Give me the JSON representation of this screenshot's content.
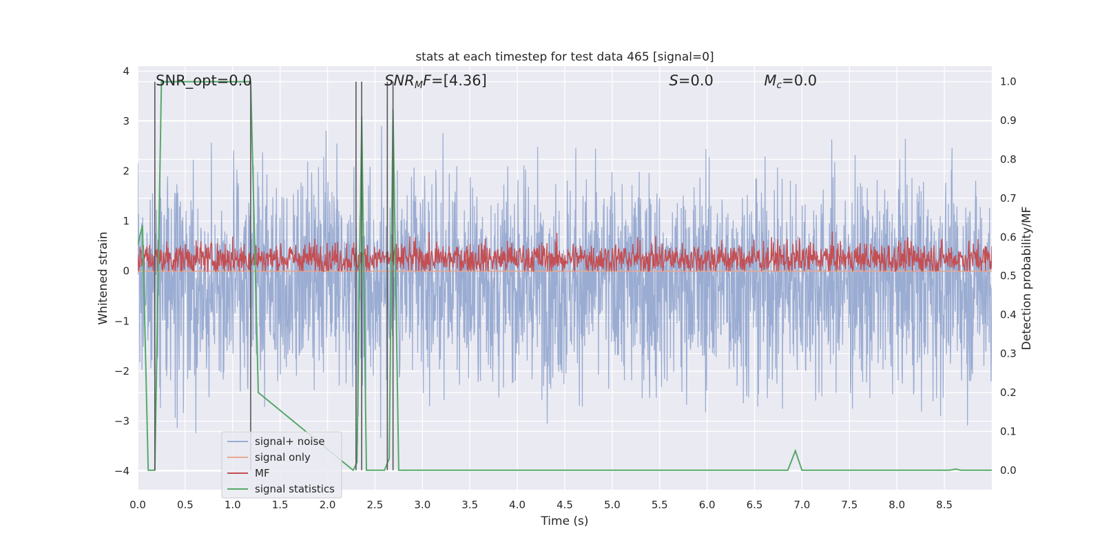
{
  "chart_data": {
    "type": "line",
    "title": "stats at each timestep for test data 465 [signal=0]",
    "xlabel": "Time (s)",
    "ylabel": "Whitened strain",
    "y2label": "Detection probability/MF",
    "xlim": [
      0.0,
      9.0
    ],
    "ylim": [
      -4.37,
      4.1
    ],
    "y2lim": [
      -0.05,
      1.04
    ],
    "xticks": [
      "0.0",
      "0.5",
      "1.0",
      "1.5",
      "2.0",
      "2.5",
      "3.0",
      "3.5",
      "4.0",
      "4.5",
      "5.0",
      "5.5",
      "6.0",
      "6.5",
      "7.0",
      "7.5",
      "8.0",
      "8.5"
    ],
    "xtick_values": [
      0.0,
      0.5,
      1.0,
      1.5,
      2.0,
      2.5,
      3.0,
      3.5,
      4.0,
      4.5,
      5.0,
      5.5,
      6.0,
      6.5,
      7.0,
      7.5,
      8.0,
      8.5
    ],
    "yticks": [
      "4",
      "3",
      "2",
      "1",
      "0",
      "−1",
      "−2",
      "−3",
      "−4"
    ],
    "ytick_values": [
      4,
      3,
      2,
      1,
      0,
      -1,
      -2,
      -3,
      -4
    ],
    "y2ticks": [
      "1.0",
      "0.9",
      "0.8",
      "0.7",
      "0.6",
      "0.5",
      "0.4",
      "0.3",
      "0.2",
      "0.1",
      "0.0"
    ],
    "y2tick_values": [
      1.0,
      0.9,
      0.8,
      0.7,
      0.6,
      0.5,
      0.4,
      0.3,
      0.2,
      0.1,
      0.0
    ],
    "grid": true,
    "legend_position": "lower-left",
    "annotations": [
      {
        "text": "SNR_opt=0.0",
        "x": 0.19
      },
      {
        "text": "SNR_MF=[4.36]",
        "x": 2.6
      },
      {
        "text": "S=0.0",
        "x": 5.6
      },
      {
        "text": "M_c=0.0",
        "x": 6.6
      }
    ],
    "vertical_lines_x": [
      0.18,
      1.19,
      2.3,
      2.36,
      2.63,
      2.69
    ],
    "series": [
      {
        "name": "signal+ noise",
        "color": "#9aacd2",
        "axis": "left",
        "description_range": [
          -3.6,
          3.7
        ],
        "mean": -0.2,
        "std": 1.05
      },
      {
        "name": "signal only",
        "color": "#e9a88f",
        "axis": "left",
        "x": [
          0.0,
          9.0
        ],
        "y": [
          0.0,
          0.0
        ]
      },
      {
        "name": "MF",
        "color": "#c44e52",
        "axis": "left",
        "mean": 0.25,
        "range": [
          0.0,
          1.0
        ]
      },
      {
        "name": "signal statistics",
        "color": "#55a868",
        "axis": "right",
        "x": [
          0.0,
          0.05,
          0.11,
          0.18,
          0.25,
          1.19,
          1.27,
          2.27,
          2.31,
          2.36,
          2.41,
          2.6,
          2.65,
          2.69,
          2.75,
          6.85,
          6.93,
          7.0,
          8.55,
          8.62,
          8.68,
          9.0
        ],
        "y": [
          0.58,
          0.63,
          0.0,
          0.0,
          1.0,
          1.0,
          0.2,
          0.0,
          0.02,
          0.91,
          0.0,
          0.0,
          0.03,
          0.93,
          0.0,
          0.0,
          0.05,
          0.0,
          0.0,
          0.003,
          0.0,
          0.0
        ]
      }
    ]
  }
}
